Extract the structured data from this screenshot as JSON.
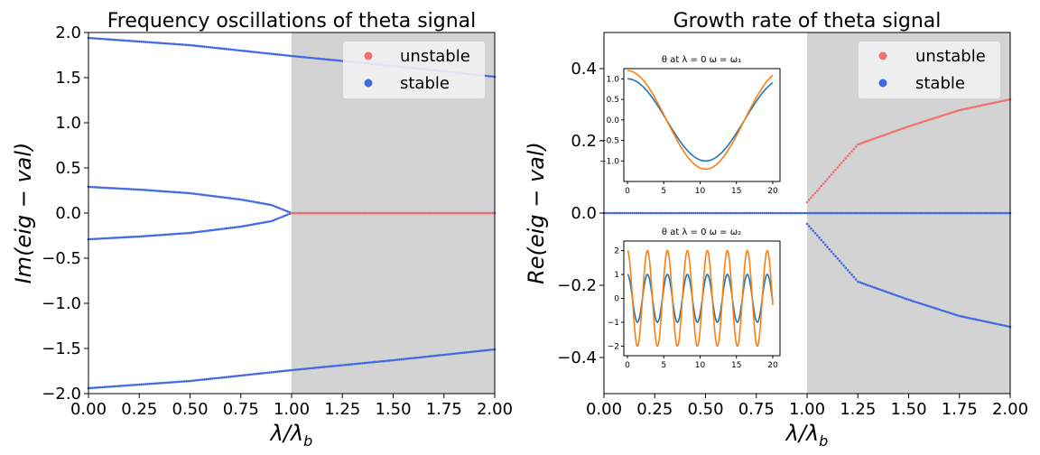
{
  "chart_data": [
    {
      "type": "scatter",
      "title": "Frequency oscillations of theta signal",
      "xlabel": "λ/λ_b",
      "ylabel": "Im(eig − val)",
      "xlim": [
        0,
        2
      ],
      "ylim": [
        -2,
        2
      ],
      "xticks": [
        "0.00",
        "0.25",
        "0.50",
        "0.75",
        "1.00",
        "1.25",
        "1.50",
        "1.75",
        "2.00"
      ],
      "yticks": [
        "−2.0",
        "−1.5",
        "−1.0",
        "−0.5",
        "0.0",
        "0.5",
        "1.0",
        "1.5",
        "2.0"
      ],
      "shaded_region_x": [
        1.0,
        2.0
      ],
      "legend": {
        "position": "top-right",
        "entries": [
          {
            "label": "unstable",
            "color": "#f07070"
          },
          {
            "label": "stable",
            "color": "#4169e1"
          }
        ]
      },
      "series": [
        {
          "name": "stable",
          "color": "#4169e1",
          "curves": [
            {
              "description_points": [
                [
                  0,
                  1.94
                ],
                [
                  0.5,
                  1.86
                ],
                [
                  1.0,
                  1.74
                ],
                [
                  1.5,
                  1.63
                ],
                [
                  2.0,
                  1.51
                ]
              ]
            },
            {
              "description_points": [
                [
                  0,
                  -1.94
                ],
                [
                  0.5,
                  -1.86
                ],
                [
                  1.0,
                  -1.74
                ],
                [
                  1.5,
                  -1.63
                ],
                [
                  2.0,
                  -1.51
                ]
              ]
            },
            {
              "description_points": [
                [
                  0,
                  0.29
                ],
                [
                  0.25,
                  0.26
                ],
                [
                  0.5,
                  0.22
                ],
                [
                  0.75,
                  0.15
                ],
                [
                  0.9,
                  0.09
                ],
                [
                  1.0,
                  0.0
                ]
              ]
            },
            {
              "description_points": [
                [
                  0,
                  -0.29
                ],
                [
                  0.25,
                  -0.26
                ],
                [
                  0.5,
                  -0.22
                ],
                [
                  0.75,
                  -0.15
                ],
                [
                  0.9,
                  -0.09
                ],
                [
                  1.0,
                  0.0
                ]
              ]
            },
            {
              "description_points": [
                [
                  1.0,
                  0.0
                ],
                [
                  2.0,
                  0.0
                ]
              ]
            }
          ]
        },
        {
          "name": "unstable",
          "color": "#f07070",
          "curves": [
            {
              "description_points": [
                [
                  1.0,
                  0.0
                ],
                [
                  2.0,
                  0.0
                ]
              ]
            }
          ]
        }
      ]
    },
    {
      "type": "scatter",
      "title": "Growth rate of theta signal",
      "xlabel": "λ/λ_b",
      "ylabel": "Re(eig − val)",
      "xlim": [
        0,
        2
      ],
      "ylim": [
        -0.5,
        0.5
      ],
      "xticks": [
        "0.00",
        "0.25",
        "0.50",
        "0.75",
        "1.00",
        "1.25",
        "1.50",
        "1.75",
        "2.00"
      ],
      "yticks": [
        "−0.4",
        "−0.2",
        "0.0",
        "0.2",
        "0.4"
      ],
      "shaded_region_x": [
        1.0,
        2.0
      ],
      "legend": {
        "position": "top-right",
        "entries": [
          {
            "label": "unstable",
            "color": "#f07070"
          },
          {
            "label": "stable",
            "color": "#4169e1"
          }
        ]
      },
      "series": [
        {
          "name": "stable",
          "color": "#4169e1",
          "curves": [
            {
              "description_points": [
                [
                  0,
                  0.0
                ],
                [
                  2.0,
                  0.0
                ]
              ]
            },
            {
              "description_points": [
                [
                  1.0,
                  -0.03
                ],
                [
                  1.25,
                  -0.19
                ],
                [
                  1.5,
                  -0.24
                ],
                [
                  1.75,
                  -0.285
                ],
                [
                  2.0,
                  -0.315
                ]
              ]
            }
          ]
        },
        {
          "name": "unstable",
          "color": "#f07070",
          "curves": [
            {
              "description_points": [
                [
                  1.0,
                  0.03
                ],
                [
                  1.25,
                  0.19
                ],
                [
                  1.5,
                  0.24
                ],
                [
                  1.75,
                  0.285
                ],
                [
                  2.0,
                  0.315
                ]
              ]
            }
          ]
        }
      ],
      "insets": [
        {
          "type": "line",
          "title": "θ at λ = 0  ω = ω₁",
          "xlim": [
            -0.5,
            21
          ],
          "ylim": [
            -1.5,
            1.25
          ],
          "xticks": [
            "0",
            "5",
            "10",
            "15",
            "20"
          ],
          "yticks": [
            "−1.0",
            "−0.5",
            "0.0",
            "0.5",
            "1.0"
          ],
          "series": [
            {
              "color": "#1f77b4",
              "amplitude": 1.0,
              "period": 21.5
            },
            {
              "color": "#ff7f0e",
              "amplitude": 1.2,
              "period": 21.5
            }
          ]
        },
        {
          "type": "line",
          "title": "θ at λ = 0  ω = ω₂",
          "xlim": [
            -0.5,
            21
          ],
          "ylim": [
            -2.4,
            2.4
          ],
          "xticks": [
            "0",
            "5",
            "10",
            "15",
            "20"
          ],
          "yticks": [
            "−2",
            "−1",
            "0",
            "1",
            "2"
          ],
          "series": [
            {
              "color": "#1f77b4",
              "amplitude": 1.0,
              "period": 2.75
            },
            {
              "color": "#ff7f0e",
              "amplitude": 2.0,
              "period": 2.75
            }
          ]
        }
      ]
    }
  ]
}
